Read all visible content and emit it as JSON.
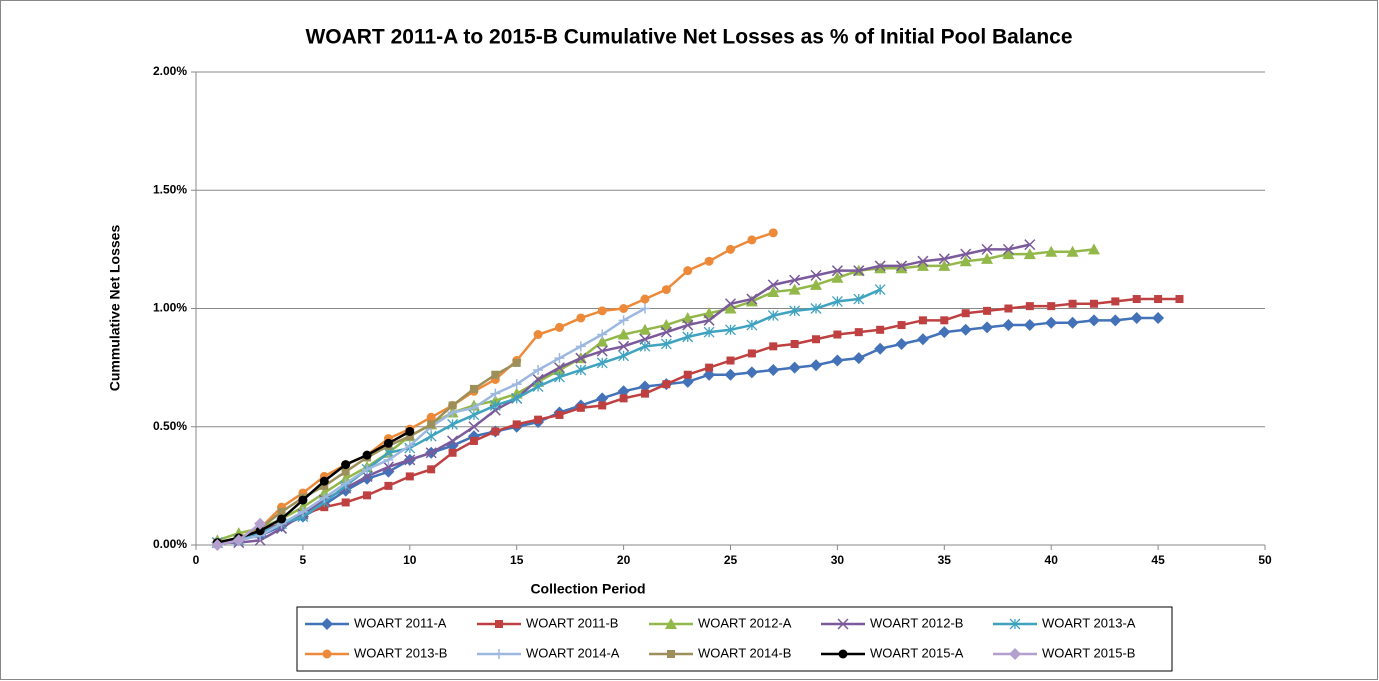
{
  "chart_data": {
    "type": "line",
    "title": "WOART 2011-A to 2015-B Cumulative Net Losses as % of Initial Pool Balance",
    "x_label": "Collection Period",
    "y_label": "Cummulative Net Losses",
    "x": [
      1,
      2,
      3,
      4,
      5,
      6,
      7,
      8,
      9,
      10,
      11,
      12,
      13,
      14,
      15,
      16,
      17,
      18,
      19,
      20,
      21,
      22,
      23,
      24,
      25,
      26,
      27,
      28,
      29,
      30,
      31,
      32,
      33,
      34,
      35,
      36,
      37,
      38,
      39,
      40,
      41,
      42,
      43,
      44,
      45,
      46
    ],
    "xlim": [
      0,
      50
    ],
    "xticks": [
      0,
      5,
      10,
      15,
      20,
      25,
      30,
      35,
      40,
      45,
      50
    ],
    "ylim": [
      0,
      2
    ],
    "yticks": [
      {
        "value": 0,
        "label": "0.00%"
      },
      {
        "value": 0.5,
        "label": "0.50%"
      },
      {
        "value": 1,
        "label": "1.00%"
      },
      {
        "value": 1.5,
        "label": "1.50%"
      },
      {
        "value": 2,
        "label": "2.00%"
      }
    ],
    "grid": true,
    "legend": "bottom",
    "series": [
      {
        "name": "WOART 2011-A",
        "color": "#4372b8",
        "marker": "diamond",
        "values": [
          0.01,
          0.02,
          0.04,
          0.08,
          0.12,
          0.17,
          0.23,
          0.28,
          0.31,
          0.36,
          0.39,
          0.42,
          0.46,
          0.48,
          0.5,
          0.52,
          0.56,
          0.59,
          0.62,
          0.65,
          0.67,
          0.68,
          0.69,
          0.72,
          0.72,
          0.73,
          0.74,
          0.75,
          0.76,
          0.78,
          0.79,
          0.83,
          0.85,
          0.87,
          0.9,
          0.91,
          0.92,
          0.93,
          0.93,
          0.94,
          0.94,
          0.95,
          0.95,
          0.96,
          0.96,
          null
        ]
      },
      {
        "name": "WOART 2011-B",
        "color": "#bf4040",
        "marker": "square",
        "values": [
          0.01,
          0.03,
          0.06,
          0.09,
          0.13,
          0.16,
          0.18,
          0.21,
          0.25,
          0.29,
          0.32,
          0.39,
          0.44,
          0.48,
          0.51,
          0.53,
          0.55,
          0.58,
          0.59,
          0.62,
          0.64,
          0.68,
          0.72,
          0.75,
          0.78,
          0.81,
          0.84,
          0.85,
          0.87,
          0.89,
          0.9,
          0.91,
          0.93,
          0.95,
          0.95,
          0.98,
          0.99,
          1.0,
          1.01,
          1.01,
          1.02,
          1.02,
          1.03,
          1.04,
          1.04,
          1.04
        ]
      },
      {
        "name": "WOART 2012-A",
        "color": "#93b84a",
        "marker": "triangle",
        "values": [
          0.02,
          0.05,
          0.07,
          0.11,
          0.16,
          0.22,
          0.28,
          0.33,
          0.39,
          0.46,
          0.51,
          0.56,
          0.59,
          0.61,
          0.64,
          0.69,
          0.74,
          0.79,
          0.86,
          0.89,
          0.91,
          0.93,
          0.96,
          0.98,
          1.0,
          1.03,
          1.07,
          1.08,
          1.1,
          1.13,
          1.16,
          1.17,
          1.17,
          1.18,
          1.18,
          1.2,
          1.21,
          1.23,
          1.23,
          1.24,
          1.24,
          1.25,
          null,
          null,
          null,
          null
        ]
      },
      {
        "name": "WOART 2012-B",
        "color": "#7a5a9a",
        "marker": "x",
        "values": [
          0.01,
          0.01,
          0.02,
          0.07,
          0.13,
          0.19,
          0.24,
          0.29,
          0.33,
          0.36,
          0.39,
          0.44,
          0.5,
          0.57,
          0.62,
          0.7,
          0.75,
          0.79,
          0.82,
          0.84,
          0.87,
          0.9,
          0.93,
          0.95,
          1.02,
          1.04,
          1.1,
          1.12,
          1.14,
          1.16,
          1.16,
          1.18,
          1.18,
          1.2,
          1.21,
          1.23,
          1.25,
          1.25,
          1.27,
          null,
          null,
          null,
          null,
          null,
          null,
          null
        ]
      },
      {
        "name": "WOART 2013-A",
        "color": "#3fa3bf",
        "marker": "asterisk",
        "values": [
          0.01,
          0.02,
          0.05,
          0.09,
          0.12,
          0.18,
          0.25,
          0.32,
          0.39,
          0.41,
          0.46,
          0.51,
          0.55,
          0.59,
          0.62,
          0.67,
          0.71,
          0.74,
          0.77,
          0.8,
          0.84,
          0.85,
          0.88,
          0.9,
          0.91,
          0.93,
          0.97,
          0.99,
          1.0,
          1.03,
          1.04,
          1.08,
          null,
          null,
          null,
          null,
          null,
          null,
          null,
          null,
          null,
          null,
          null,
          null,
          null,
          null
        ]
      },
      {
        "name": "WOART 2013-B",
        "color": "#ec8a3a",
        "marker": "circle",
        "values": [
          0.01,
          0.03,
          0.07,
          0.16,
          0.22,
          0.29,
          0.34,
          0.38,
          0.45,
          0.49,
          0.54,
          0.59,
          0.65,
          0.7,
          0.78,
          0.89,
          0.92,
          0.96,
          0.99,
          1.0,
          1.04,
          1.08,
          1.16,
          1.2,
          1.25,
          1.29,
          1.32,
          null,
          null,
          null,
          null,
          null,
          null,
          null,
          null,
          null,
          null,
          null,
          null,
          null,
          null,
          null,
          null,
          null,
          null,
          null
        ]
      },
      {
        "name": "WOART 2014-A",
        "color": "#9db8e0",
        "marker": "plus",
        "values": [
          0.01,
          0.02,
          0.04,
          0.09,
          0.14,
          0.2,
          0.26,
          0.32,
          0.36,
          0.42,
          0.5,
          0.56,
          0.58,
          0.64,
          0.68,
          0.74,
          0.79,
          0.84,
          0.89,
          0.95,
          1.0,
          null,
          null,
          null,
          null,
          null,
          null,
          null,
          null,
          null,
          null,
          null,
          null,
          null,
          null,
          null,
          null,
          null,
          null,
          null,
          null,
          null,
          null,
          null,
          null,
          null
        ]
      },
      {
        "name": "WOART 2014-B",
        "color": "#9c8f5a",
        "marker": "square",
        "values": [
          0.01,
          0.03,
          0.07,
          0.14,
          0.2,
          0.25,
          0.31,
          0.37,
          0.42,
          0.46,
          0.51,
          0.59,
          0.66,
          0.72,
          0.77,
          null,
          null,
          null,
          null,
          null,
          null,
          null,
          null,
          null,
          null,
          null,
          null,
          null,
          null,
          null,
          null,
          null,
          null,
          null,
          null,
          null,
          null,
          null,
          null,
          null,
          null,
          null,
          null,
          null,
          null,
          null
        ]
      },
      {
        "name": "WOART 2015-A",
        "color": "#000000",
        "marker": "circle",
        "values": [
          0.01,
          0.03,
          0.06,
          0.11,
          0.19,
          0.27,
          0.34,
          0.38,
          0.43,
          0.48,
          null,
          null,
          null,
          null,
          null,
          null,
          null,
          null,
          null,
          null,
          null,
          null,
          null,
          null,
          null,
          null,
          null,
          null,
          null,
          null,
          null,
          null,
          null,
          null,
          null,
          null,
          null,
          null,
          null,
          null,
          null,
          null,
          null,
          null,
          null,
          null
        ]
      },
      {
        "name": "WOART 2015-B",
        "color": "#b4a0cf",
        "marker": "diamond",
        "values": [
          0.0,
          0.02,
          0.09,
          null,
          null,
          null,
          null,
          null,
          null,
          null,
          null,
          null,
          null,
          null,
          null,
          null,
          null,
          null,
          null,
          null,
          null,
          null,
          null,
          null,
          null,
          null,
          null,
          null,
          null,
          null,
          null,
          null,
          null,
          null,
          null,
          null,
          null,
          null,
          null,
          null,
          null,
          null,
          null,
          null,
          null,
          null
        ]
      }
    ]
  }
}
